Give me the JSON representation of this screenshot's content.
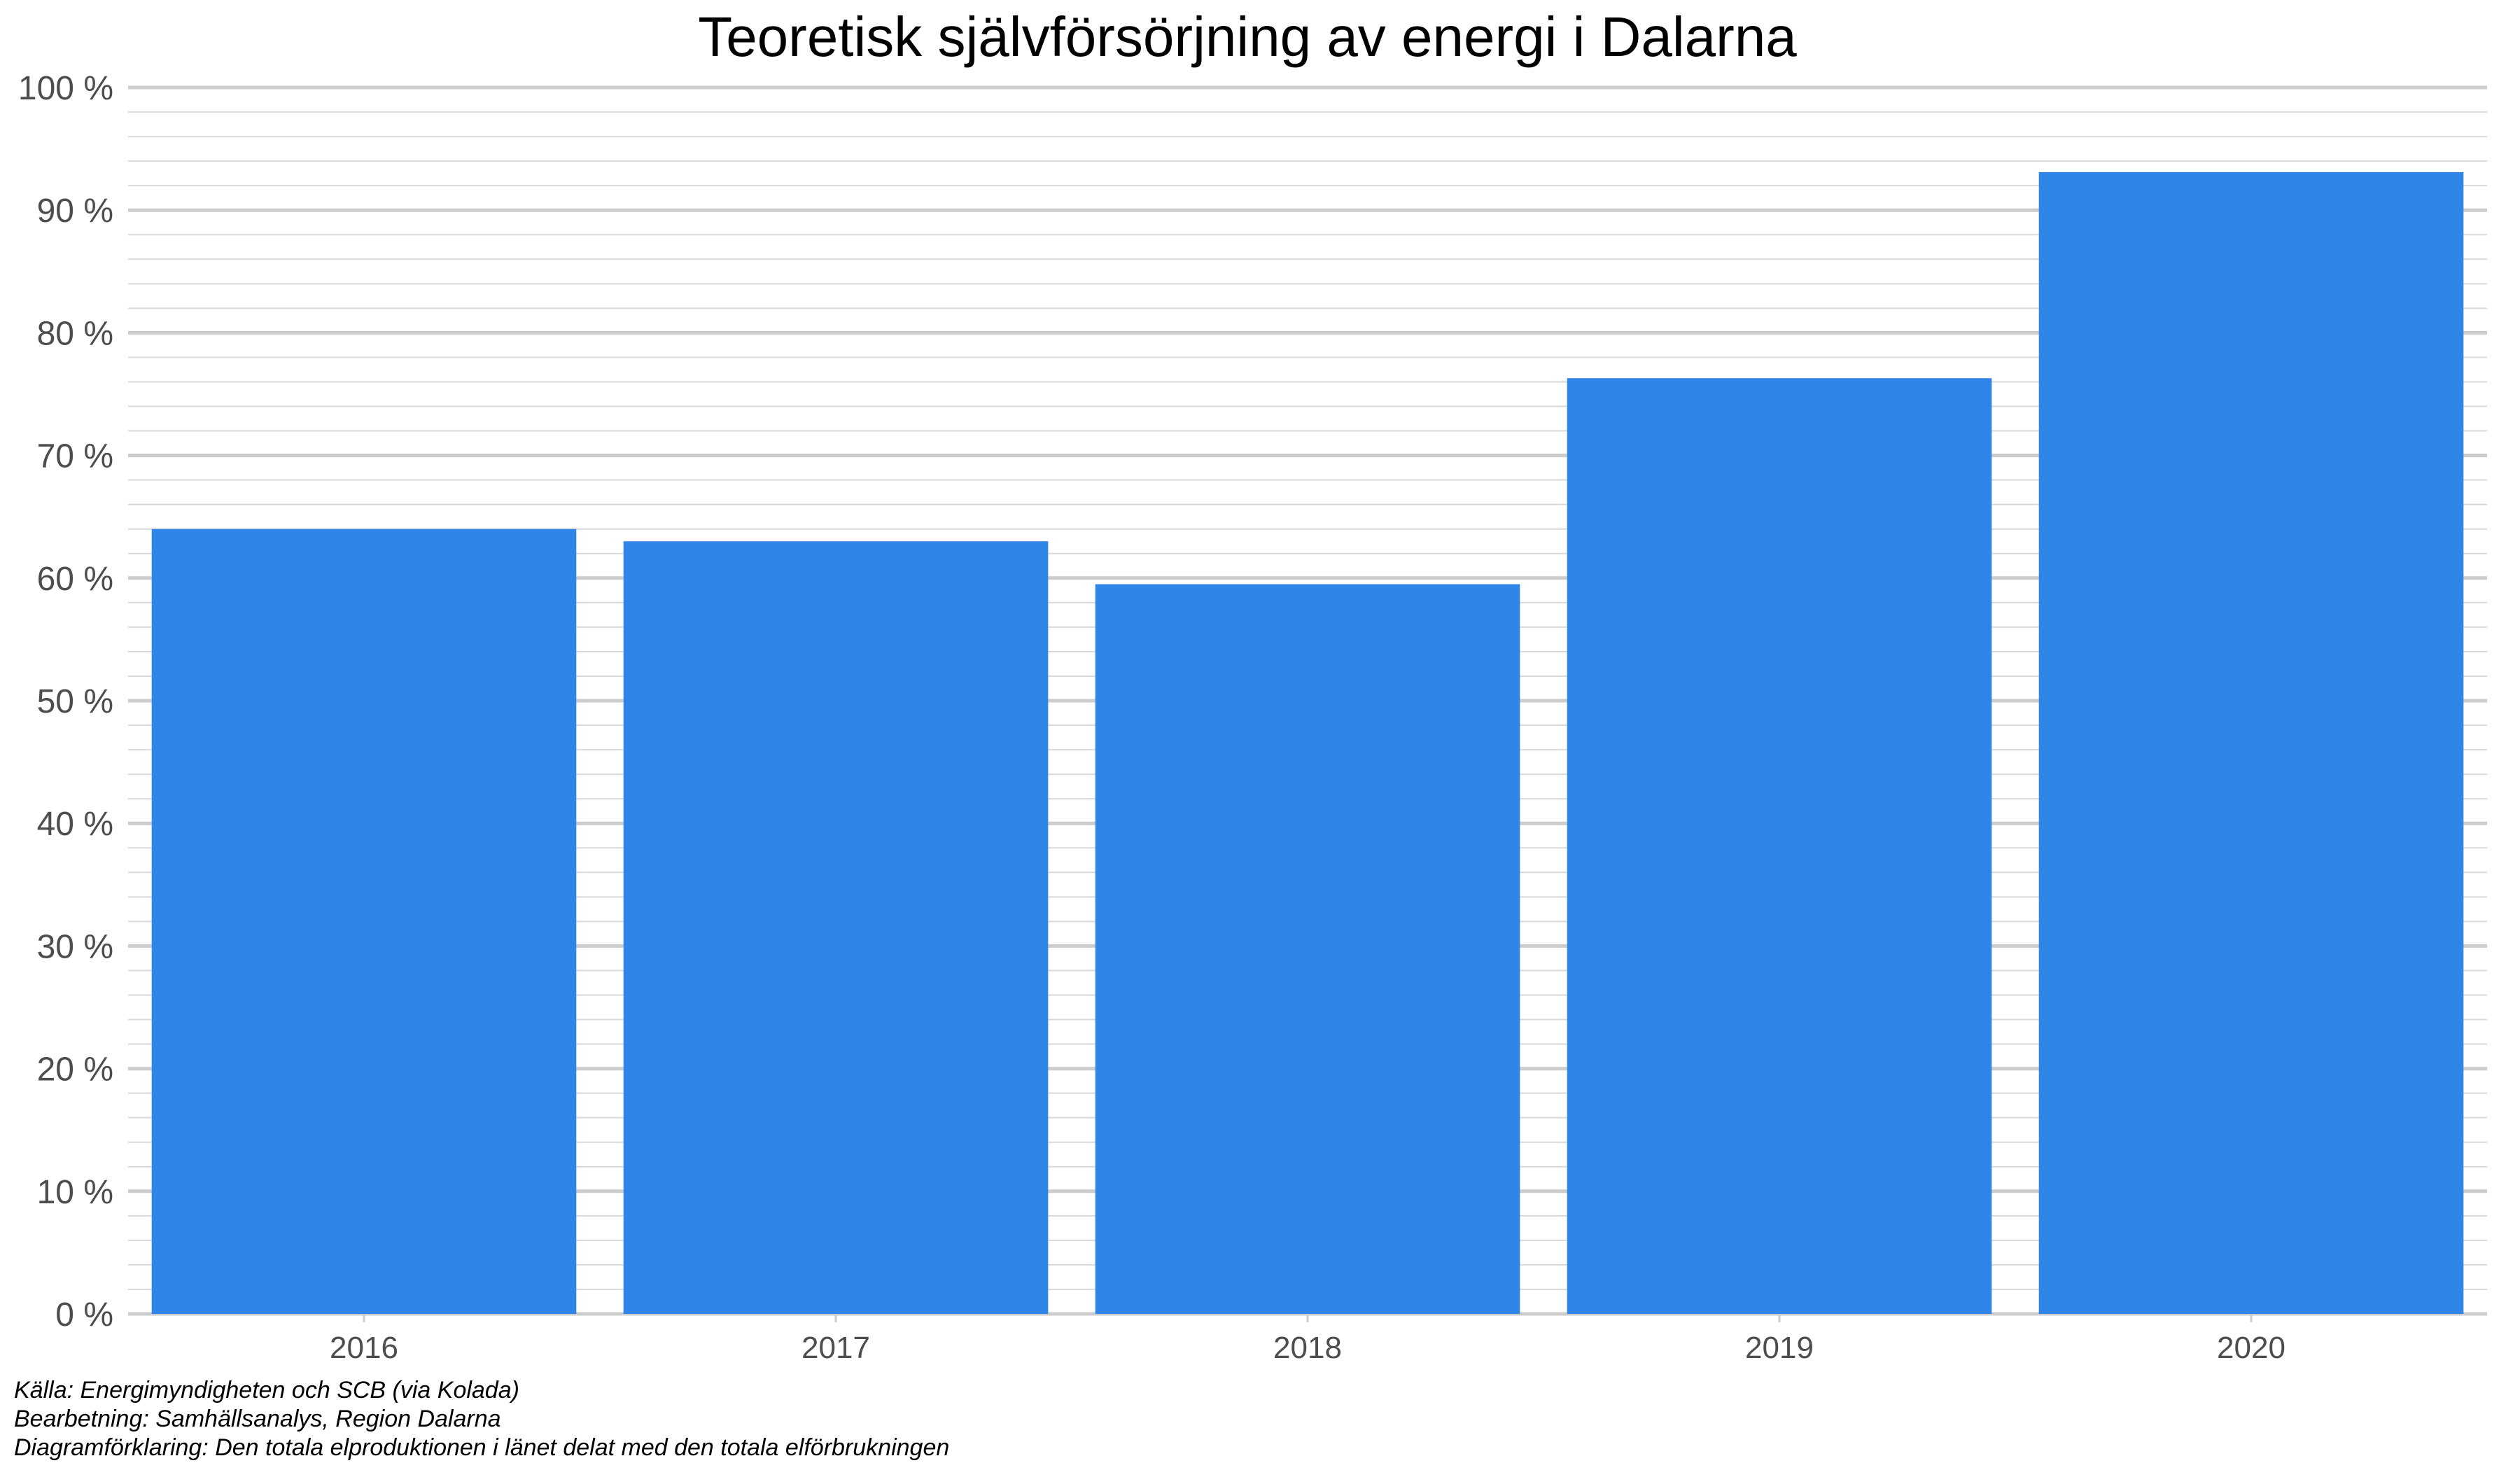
{
  "chart_data": {
    "type": "bar",
    "title": "Teoretisk självförsörjning av energi i Dalarna",
    "xlabel": "",
    "ylabel": "",
    "categories": [
      "2016",
      "2017",
      "2018",
      "2019",
      "2020"
    ],
    "values": [
      64.0,
      63.0,
      59.5,
      76.3,
      93.1
    ],
    "unit": "%",
    "ylim": [
      0,
      100
    ],
    "y_major_step": 10,
    "y_minor_step": 2,
    "y_tick_labels": [
      "0 %",
      "10 %",
      "20 %",
      "30 %",
      "40 %",
      "50 %",
      "60 %",
      "70 %",
      "80 %",
      "90 %",
      "100 %"
    ],
    "grid": true,
    "legend": "none",
    "bar_color": "#3086e8",
    "grid_major_color": "#cccccc",
    "grid_minor_color": "#d9d9d9"
  },
  "captions": [
    "Källa: Energimyndigheten och SCB (via Kolada)",
    "Bearbetning: Samhällsanalys, Region Dalarna",
    "Diagramförklaring: Den totala elproduktionen i länet delat med den totala elförbrukningen"
  ]
}
